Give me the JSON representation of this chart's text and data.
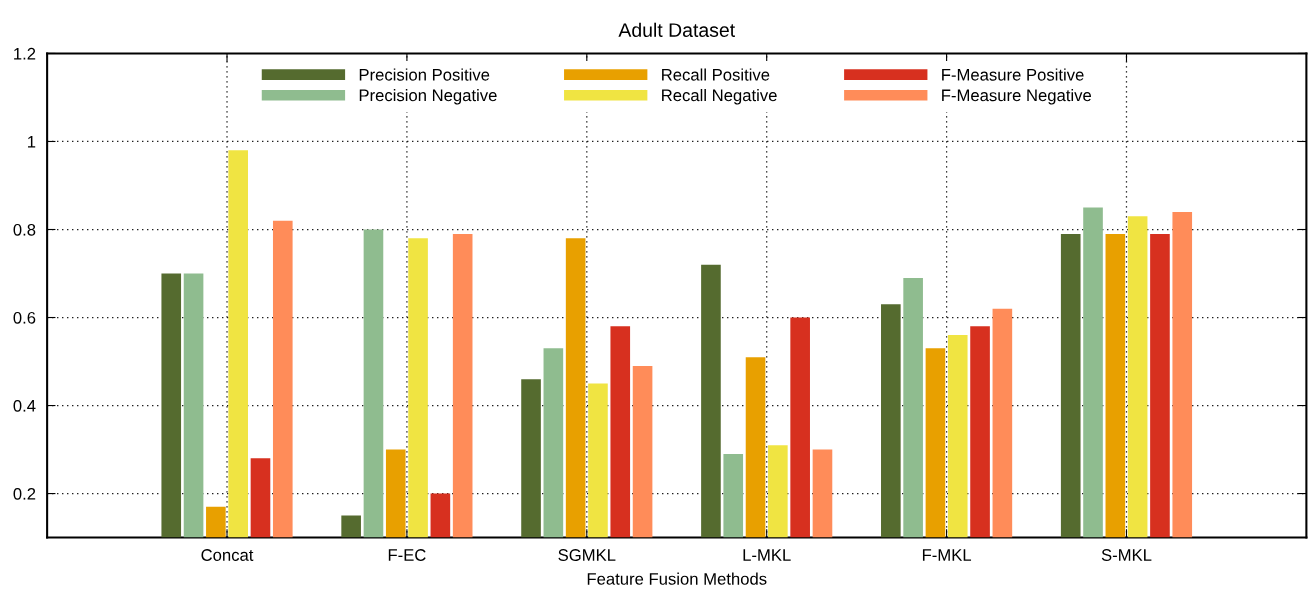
{
  "chart_data": {
    "type": "bar",
    "title": "Adult Dataset",
    "xlabel": "Feature Fusion Methods",
    "categories": [
      "Concat",
      "F-EC",
      "SGMKL",
      "L-MKL",
      "F-MKL",
      "S-MKL"
    ],
    "series": [
      {
        "name": "Precision Positive",
        "color": "#556b2f",
        "values": [
          0.7,
          0.15,
          0.46,
          0.72,
          0.63,
          0.79
        ]
      },
      {
        "name": "Precision Negative",
        "color": "#8fbc8f",
        "values": [
          0.7,
          0.8,
          0.53,
          0.29,
          0.69,
          0.85
        ]
      },
      {
        "name": "Recall Positive",
        "color": "#e8a000",
        "values": [
          0.17,
          0.3,
          0.78,
          0.51,
          0.53,
          0.79
        ]
      },
      {
        "name": "Recall Negative",
        "color": "#f0e442",
        "values": [
          0.98,
          0.78,
          0.45,
          0.31,
          0.56,
          0.83
        ]
      },
      {
        "name": "F-Measure Positive",
        "color": "#d7301f",
        "values": [
          0.28,
          0.2,
          0.58,
          0.6,
          0.58,
          0.79
        ]
      },
      {
        "name": "F-Measure Negative",
        "color": "#ff8c59",
        "values": [
          0.82,
          0.79,
          0.49,
          0.3,
          0.62,
          0.84
        ]
      }
    ],
    "ylim": [
      0.1,
      1.2
    ],
    "yticks": [
      0.2,
      0.4,
      0.6,
      0.8,
      1,
      1.2
    ],
    "grid": true,
    "legend": "top"
  }
}
